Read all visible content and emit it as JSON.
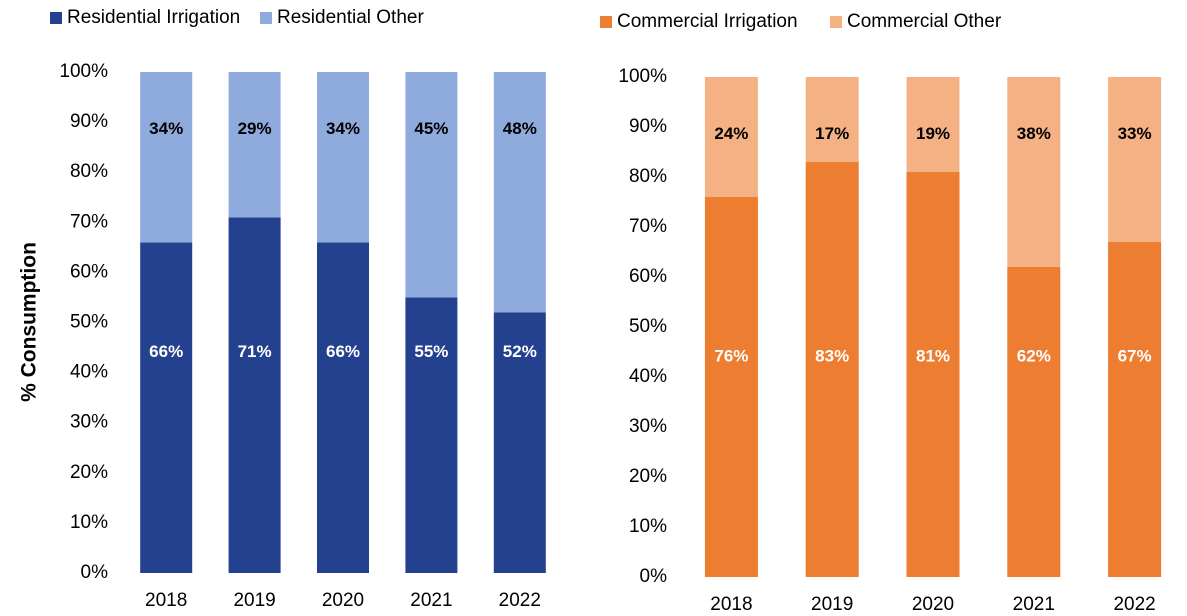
{
  "chart_data": [
    {
      "type": "stacked_bar",
      "y_label": "% Consumption",
      "categories": [
        "2018",
        "2019",
        "2020",
        "2021",
        "2022"
      ],
      "series": [
        {
          "name": "Residential Irrigation",
          "color": "#24418f",
          "values": [
            66,
            71,
            66,
            55,
            52
          ],
          "value_labels": [
            "66%",
            "71%",
            "66%",
            "55%",
            "52%"
          ]
        },
        {
          "name": "Residential Other",
          "color": "#8faadc",
          "values": [
            34,
            29,
            34,
            45,
            48
          ],
          "value_labels": [
            "34%",
            "29%",
            "34%",
            "45%",
            "48%"
          ]
        }
      ],
      "ylim": [
        0,
        100
      ],
      "yticks": [
        {
          "value": 0,
          "label": "0%"
        },
        {
          "value": 10,
          "label": "10%"
        },
        {
          "value": 20,
          "label": "20%"
        },
        {
          "value": 30,
          "label": "30%"
        },
        {
          "value": 40,
          "label": "40%"
        },
        {
          "value": 50,
          "label": "50%"
        },
        {
          "value": 60,
          "label": "60%"
        },
        {
          "value": 70,
          "label": "70%"
        },
        {
          "value": 80,
          "label": "80%"
        },
        {
          "value": 90,
          "label": "90%"
        },
        {
          "value": 100,
          "label": "100%"
        }
      ],
      "legend": "top"
    },
    {
      "type": "stacked_bar",
      "categories": [
        "2018",
        "2019",
        "2020",
        "2021",
        "2022"
      ],
      "series": [
        {
          "name": "Commercial Irrigation",
          "color": "#ed7d31",
          "values": [
            76,
            83,
            81,
            62,
            67
          ],
          "value_labels": [
            "76%",
            "83%",
            "81%",
            "62%",
            "67%"
          ]
        },
        {
          "name": "Commercial Other",
          "color": "#f4b183",
          "values": [
            24,
            17,
            19,
            38,
            33
          ],
          "value_labels": [
            "24%",
            "17%",
            "19%",
            "38%",
            "33%"
          ]
        }
      ],
      "ylim": [
        0,
        100
      ],
      "yticks": [
        {
          "value": 0,
          "label": "0%"
        },
        {
          "value": 10,
          "label": "10%"
        },
        {
          "value": 20,
          "label": "20%"
        },
        {
          "value": 30,
          "label": "30%"
        },
        {
          "value": 40,
          "label": "40%"
        },
        {
          "value": 50,
          "label": "50%"
        },
        {
          "value": 60,
          "label": "60%"
        },
        {
          "value": 70,
          "label": "70%"
        },
        {
          "value": 80,
          "label": "80%"
        },
        {
          "value": 90,
          "label": "90%"
        },
        {
          "value": 100,
          "label": "100%"
        }
      ],
      "legend": "top"
    }
  ]
}
